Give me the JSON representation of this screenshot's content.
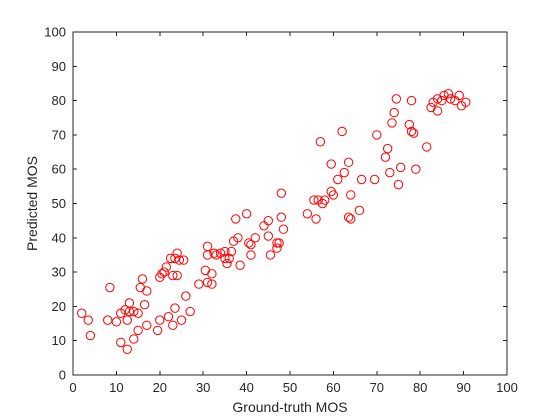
{
  "chart_data": {
    "type": "scatter",
    "title": "",
    "xlabel": "Ground-truth MOS",
    "ylabel": "Predicted MOS",
    "xlim": [
      0,
      100
    ],
    "ylim": [
      0,
      100
    ],
    "xticks": [
      0,
      10,
      20,
      30,
      40,
      50,
      60,
      70,
      80,
      90,
      100
    ],
    "yticks": [
      0,
      10,
      20,
      30,
      40,
      50,
      60,
      70,
      80,
      90,
      100
    ],
    "grid": false,
    "marker": "circle-open",
    "color": "#ff0000",
    "series": [
      {
        "points": [
          [
            2,
            18
          ],
          [
            3.5,
            16
          ],
          [
            4,
            11.5
          ],
          [
            8,
            16
          ],
          [
            8.5,
            25.5
          ],
          [
            10,
            15.5
          ],
          [
            11,
            9.5
          ],
          [
            11,
            18
          ],
          [
            12,
            19
          ],
          [
            12.5,
            7.5
          ],
          [
            12.5,
            16
          ],
          [
            13,
            21
          ],
          [
            13,
            18.5
          ],
          [
            14,
            10.5
          ],
          [
            14,
            18.5
          ],
          [
            15,
            13
          ],
          [
            15,
            18
          ],
          [
            15.5,
            25.5
          ],
          [
            16,
            28
          ],
          [
            16.5,
            20.5
          ],
          [
            17,
            14.5
          ],
          [
            17,
            24.5
          ],
          [
            19.5,
            13
          ],
          [
            20,
            16
          ],
          [
            20,
            28.5
          ],
          [
            20.5,
            29.5
          ],
          [
            21,
            30
          ],
          [
            21.5,
            31.5
          ],
          [
            22,
            17
          ],
          [
            22.5,
            34
          ],
          [
            23,
            14.5
          ],
          [
            23,
            29
          ],
          [
            23.5,
            19.5
          ],
          [
            23.5,
            34
          ],
          [
            24,
            35.5
          ],
          [
            24,
            29
          ],
          [
            24.5,
            33.5
          ],
          [
            25,
            16
          ],
          [
            25.5,
            33.5
          ],
          [
            26,
            23
          ],
          [
            27,
            18.5
          ],
          [
            29,
            26.5
          ],
          [
            30.5,
            30.5
          ],
          [
            31,
            27
          ],
          [
            31,
            37.5
          ],
          [
            31,
            35
          ],
          [
            32,
            29.5
          ],
          [
            32,
            26.5
          ],
          [
            32.5,
            35.5
          ],
          [
            33,
            35
          ],
          [
            34,
            35.5
          ],
          [
            35,
            36
          ],
          [
            35,
            34
          ],
          [
            35.5,
            32.5
          ],
          [
            36,
            34
          ],
          [
            36.5,
            36
          ],
          [
            37,
            39
          ],
          [
            37.5,
            45.5
          ],
          [
            38,
            40
          ],
          [
            38.5,
            32
          ],
          [
            40,
            47
          ],
          [
            40.5,
            38.5
          ],
          [
            41,
            35
          ],
          [
            41,
            38
          ],
          [
            42,
            40
          ],
          [
            44,
            43.5
          ],
          [
            45,
            40.5
          ],
          [
            45,
            45
          ],
          [
            45.5,
            35
          ],
          [
            47,
            38.5
          ],
          [
            47,
            37
          ],
          [
            47.5,
            38.5
          ],
          [
            48,
            46
          ],
          [
            48,
            53
          ],
          [
            48.5,
            42.5
          ],
          [
            54,
            47
          ],
          [
            55.5,
            51
          ],
          [
            56,
            45.5
          ],
          [
            56.5,
            51
          ],
          [
            57,
            68
          ],
          [
            57.5,
            50
          ],
          [
            58,
            51
          ],
          [
            59.5,
            61.5
          ],
          [
            59.5,
            53.5
          ],
          [
            60,
            52.5
          ],
          [
            61,
            57
          ],
          [
            62,
            71
          ],
          [
            62.5,
            59
          ],
          [
            63.5,
            62
          ],
          [
            63.5,
            46
          ],
          [
            64,
            52.5
          ],
          [
            64,
            45.5
          ],
          [
            66,
            48
          ],
          [
            66.5,
            57
          ],
          [
            69.5,
            57
          ],
          [
            70,
            70
          ],
          [
            72,
            63.5
          ],
          [
            72.5,
            66
          ],
          [
            73,
            59
          ],
          [
            73.5,
            73.5
          ],
          [
            74,
            76.5
          ],
          [
            74.5,
            80.5
          ],
          [
            75,
            55.5
          ],
          [
            75.5,
            60.5
          ],
          [
            77.5,
            73
          ],
          [
            78,
            71
          ],
          [
            78,
            80
          ],
          [
            78.5,
            70.5
          ],
          [
            79,
            60
          ],
          [
            81.5,
            66.5
          ],
          [
            82.5,
            78
          ],
          [
            83,
            79.5
          ],
          [
            84,
            77
          ],
          [
            84,
            80.5
          ],
          [
            85,
            80
          ],
          [
            85.5,
            81.5
          ],
          [
            86.5,
            82
          ],
          [
            87,
            80.5
          ],
          [
            88,
            80
          ],
          [
            89,
            81.5
          ],
          [
            89.5,
            78.5
          ],
          [
            90.5,
            79.5
          ]
        ]
      }
    ]
  }
}
